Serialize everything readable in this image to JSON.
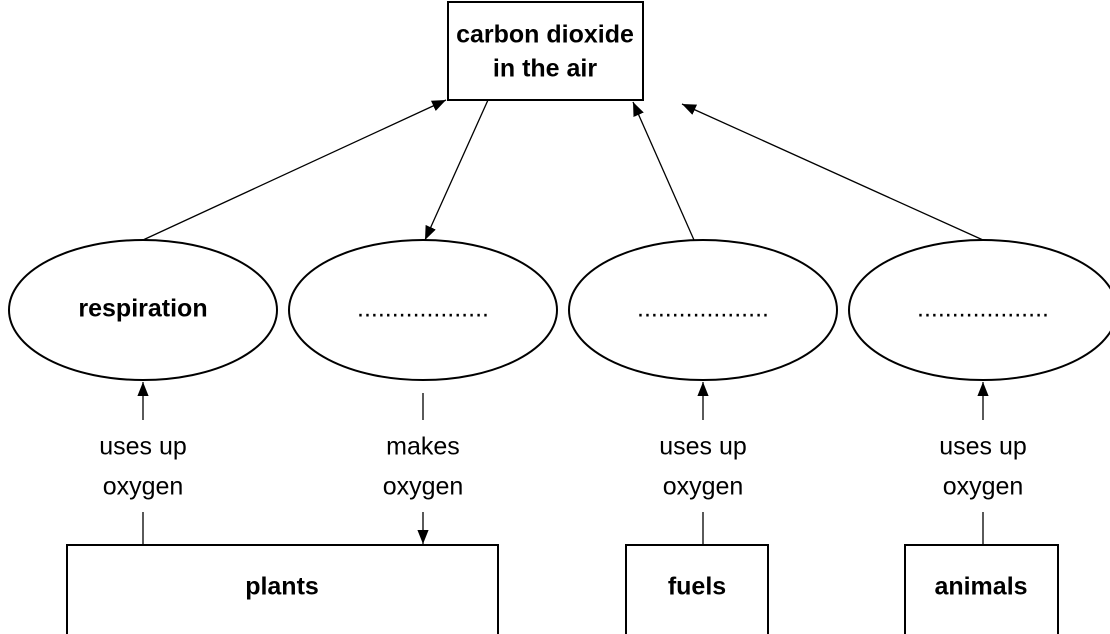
{
  "top_node": {
    "lines": [
      "carbon dioxide",
      "in the air"
    ]
  },
  "processes": [
    {
      "label": "respiration"
    },
    {
      "label": "..................."
    },
    {
      "label": "..................."
    },
    {
      "label": "..................."
    }
  ],
  "sources": [
    {
      "label": "plants"
    },
    {
      "label": "fuels"
    },
    {
      "label": "animals"
    }
  ],
  "links": [
    {
      "lines": [
        "uses up",
        "oxygen"
      ]
    },
    {
      "lines": [
        "makes",
        "oxygen"
      ]
    },
    {
      "lines": [
        "uses up",
        "oxygen"
      ]
    },
    {
      "lines": [
        "uses up",
        "oxygen"
      ]
    }
  ]
}
